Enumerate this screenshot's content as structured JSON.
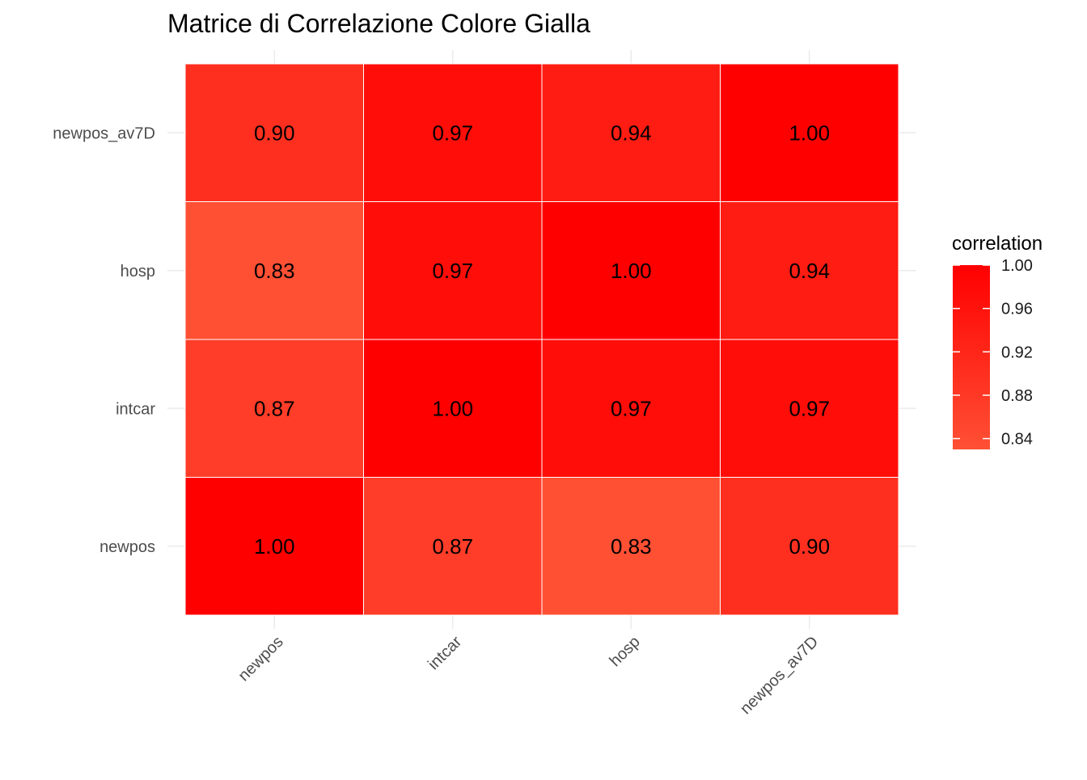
{
  "chart_data": {
    "type": "heatmap",
    "title": "Matrice di Correlazione Colore Gialla",
    "xlabel": "",
    "ylabel": "",
    "x_categories": [
      "newpos",
      "intcar",
      "hosp",
      "newpos_av7D"
    ],
    "y_categories": [
      "newpos",
      "intcar",
      "hosp",
      "newpos_av7D"
    ],
    "values": [
      [
        1.0,
        0.87,
        0.83,
        0.9
      ],
      [
        0.87,
        1.0,
        0.97,
        0.97
      ],
      [
        0.83,
        0.97,
        1.0,
        0.94
      ],
      [
        0.9,
        0.97,
        0.94,
        1.0
      ]
    ],
    "labels": [
      [
        "1.00",
        "0.87",
        "0.83",
        "0.90"
      ],
      [
        "0.87",
        "1.00",
        "0.97",
        "0.97"
      ],
      [
        "0.83",
        "0.97",
        "1.00",
        "0.94"
      ],
      [
        "0.90",
        "0.97",
        "0.94",
        "1.00"
      ]
    ],
    "legend": {
      "title": "correlation",
      "ticks": [
        "1.00",
        "0.96",
        "0.92",
        "0.88",
        "0.84"
      ],
      "tick_values": [
        1.0,
        0.96,
        0.92,
        0.88,
        0.84
      ],
      "range": [
        0.83,
        1.0
      ],
      "position": "right"
    },
    "colors": {
      "low": "#ff5034",
      "high": "#ff0000",
      "grid": "#ebebeb",
      "cell_border": "#ffffff"
    },
    "grid": true
  }
}
